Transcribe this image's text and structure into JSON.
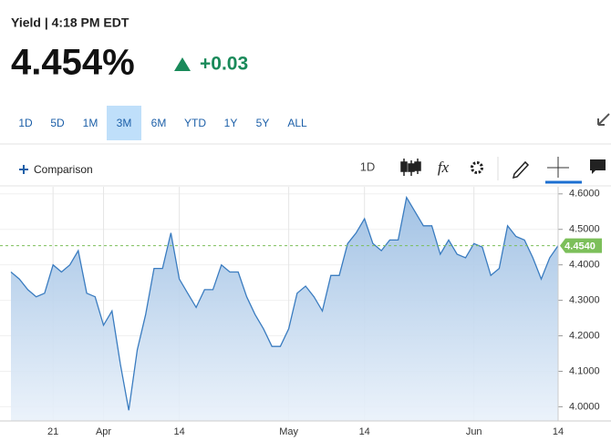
{
  "header": {
    "title": "Yield | 4:18 PM EDT",
    "price": "4.454%",
    "change": "+0.03"
  },
  "ranges": {
    "buttons": [
      "1D",
      "5D",
      "1M",
      "3M",
      "6M",
      "YTD",
      "1Y",
      "5Y",
      "ALL"
    ],
    "active": "3M"
  },
  "toolbar": {
    "comparison": "Comparison",
    "interval": "1D",
    "fx": "fx"
  },
  "chart_data": {
    "type": "area",
    "color": "#3a7cc0",
    "categories": [
      null,
      null,
      null,
      null,
      null,
      "21",
      null,
      null,
      null,
      null,
      null,
      "Apr",
      null,
      null,
      null,
      null,
      null,
      null,
      null,
      null,
      "14",
      null,
      null,
      null,
      null,
      null,
      null,
      null,
      null,
      null,
      null,
      null,
      null,
      "May",
      null,
      null,
      null,
      null,
      null,
      null,
      null,
      null,
      "14",
      null,
      null,
      null,
      null,
      null,
      null,
      null,
      null,
      null,
      null,
      null,
      null,
      "Jun",
      null,
      null,
      null,
      null,
      null,
      null,
      null,
      null,
      null,
      "14"
    ],
    "values": [
      4.38,
      4.36,
      4.33,
      4.31,
      4.32,
      4.4,
      4.38,
      4.4,
      4.44,
      4.32,
      4.31,
      4.23,
      4.27,
      4.12,
      3.99,
      4.16,
      4.26,
      4.39,
      4.39,
      4.49,
      4.36,
      4.32,
      4.28,
      4.33,
      4.33,
      4.4,
      4.38,
      4.38,
      4.31,
      4.26,
      4.22,
      4.17,
      4.17,
      4.22,
      4.32,
      4.34,
      4.31,
      4.27,
      4.37,
      4.37,
      4.46,
      4.49,
      4.53,
      4.46,
      4.44,
      4.47,
      4.47,
      4.59,
      4.55,
      4.51,
      4.51,
      4.43,
      4.47,
      4.43,
      4.42,
      4.46,
      4.45,
      4.37,
      4.39,
      4.51,
      4.48,
      4.47,
      4.42,
      4.36,
      4.42,
      4.454
    ],
    "ylim": [
      3.96,
      4.62
    ],
    "yticks": [
      {
        "value": 4.0,
        "label": "4.0000"
      },
      {
        "value": 4.1,
        "label": "4.1000"
      },
      {
        "value": 4.2,
        "label": "4.2000"
      },
      {
        "value": 4.3,
        "label": "4.3000"
      },
      {
        "value": 4.4,
        "label": "4.4000"
      },
      {
        "value": 4.5,
        "label": "4.5000"
      },
      {
        "value": 4.6,
        "label": "4.6000"
      }
    ],
    "current": {
      "value": 4.454,
      "label": "4.4540"
    },
    "grid": true
  }
}
